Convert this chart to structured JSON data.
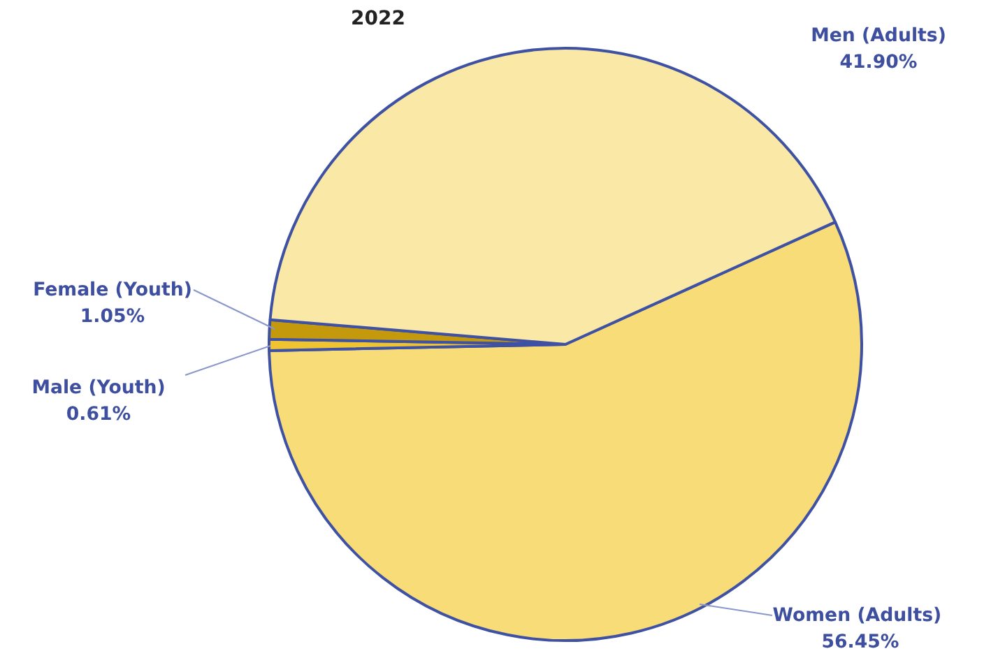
{
  "chart_data": {
    "type": "pie",
    "title": "2022",
    "categories": [
      "Women  (Adults)",
      "Male (Youth)",
      "Female (Youth)",
      "Men (Adults)"
    ],
    "values": [
      56.45,
      0.61,
      1.05,
      41.9
    ],
    "colors": [
      "#f8dc78",
      "#f0c430",
      "#c49a0c",
      "#fae8a6"
    ],
    "value_labels": [
      "56.45%",
      "0.61%",
      "1.05%",
      "41.90%"
    ]
  }
}
